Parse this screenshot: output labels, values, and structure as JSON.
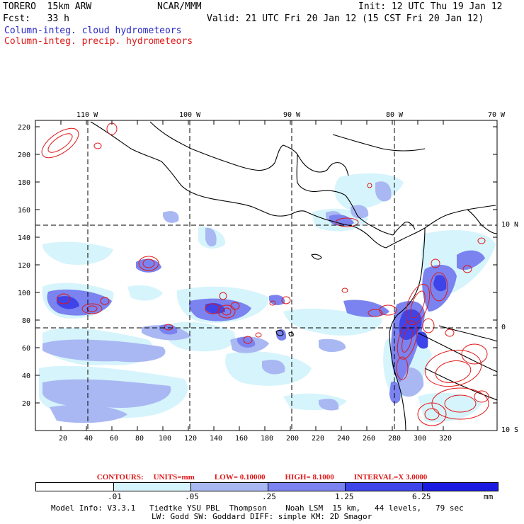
{
  "header": {
    "model": "TORERO  15km ARW",
    "org": "NCAR/MMM",
    "init": "Init: 12 UTC Thu 19 Jan 12",
    "fcst": "Fcst:   33 h",
    "valid": "Valid: 21 UTC Fri 20 Jan 12 (15 CST Fri 20 Jan 12)",
    "field1": "Column-integ. cloud hydrometeors",
    "field2": "Column-integ. precip. hydrometeors"
  },
  "map": {
    "lon_labels": [
      "110 W",
      "100 W",
      "90 W",
      "80 W",
      "70 W"
    ],
    "lat_labels": [
      "10 N",
      "0",
      "10 S"
    ],
    "x_ticks": [
      "20",
      "40",
      "60",
      "80",
      "100",
      "120",
      "140",
      "160",
      "180",
      "200",
      "220",
      "240",
      "260",
      "280",
      "300",
      "320"
    ],
    "y_ticks": [
      "220",
      "200",
      "180",
      "160",
      "140",
      "120",
      "100",
      "80",
      "60",
      "40",
      "20"
    ],
    "colors": {
      "coast": "#000000",
      "grid": "#000000",
      "contour": "#e01818",
      "shade1": "#d6f4fb",
      "shade2": "#a9b8f3",
      "shade3": "#7a83ef",
      "shade4": "#3e44e8",
      "shade5": "#1a1ae0"
    }
  },
  "contour_info": {
    "label": "CONTOURS:",
    "units": "UNITS=mm",
    "low": "LOW= 0.10000",
    "high": "HIGH=  8.1000",
    "interval": "INTERVAL=X  3.0000"
  },
  "colorbar": {
    "levels": [
      ".01",
      ".05",
      ".25",
      "1.25",
      "6.25"
    ],
    "units": "mm",
    "colors": [
      "#ffffff",
      "#d6f4fb",
      "#a9b8f3",
      "#7a83ef",
      "#3e44e8",
      "#1a1ae0"
    ]
  },
  "footer": {
    "line1": "Model Info: V3.3.1   Tiedtke YSU PBL  Thompson    Noah LSM  15 km,   44 levels,   79 sec",
    "line2": "LW: Godd SW: Goddard DIFF: simple KM: 2D Smagor"
  }
}
